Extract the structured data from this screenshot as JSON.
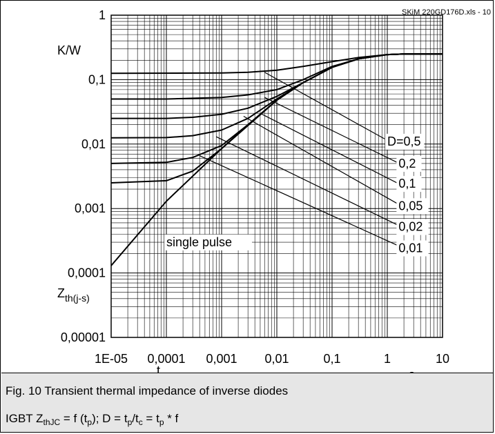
{
  "source_tag": "SKiM 220GD176D.xls - 10",
  "caption": {
    "title": "Fig. 10 Transient thermal impedance of inverse diodes",
    "formula_prefix": "IGBT Z",
    "formula_sub1": "thJC",
    "formula_part2": " = f (t",
    "formula_sub2": "p",
    "formula_part3": "); D = t",
    "formula_sub3": "p",
    "formula_part4": "/t",
    "formula_sub4": "c",
    "formula_part5": " = t",
    "formula_sub5": "p",
    "formula_part6": " * f"
  },
  "chart_data": {
    "type": "line",
    "xscale": "log",
    "yscale": "log",
    "xlim": [
      1e-05,
      10
    ],
    "ylim": [
      1e-05,
      1
    ],
    "grid": true,
    "x_tick_labels": [
      "1E-05",
      "0,0001",
      "0,001",
      "0,01",
      "0,1",
      "1",
      "10"
    ],
    "y_tick_labels": [
      "1",
      "0,1",
      "0,01",
      "0,001",
      "0,0001",
      "0,00001"
    ],
    "y_unit": "K/W",
    "ylabel_main": "Z",
    "ylabel_sub": "th(j-s)",
    "xlabel_main": "t",
    "xlabel_sub": "p",
    "x_unit": "s",
    "series": [
      {
        "name": "single pulse",
        "x": [
          1e-05,
          0.0001,
          0.001,
          0.01,
          0.03,
          0.1,
          0.3,
          1,
          2,
          10
        ],
        "y": [
          0.00013,
          0.0013,
          0.0085,
          0.048,
          0.09,
          0.155,
          0.21,
          0.245,
          0.25,
          0.25
        ]
      },
      {
        "name": "D=0,5",
        "x": [
          1e-05,
          0.001,
          0.003,
          0.01,
          0.03,
          0.1,
          0.3,
          1,
          2,
          10
        ],
        "y": [
          0.125,
          0.127,
          0.13,
          0.14,
          0.16,
          0.19,
          0.22,
          0.245,
          0.25,
          0.25
        ]
      },
      {
        "name": "0,2",
        "x": [
          1e-05,
          0.0001,
          0.001,
          0.003,
          0.01,
          0.03,
          0.1,
          0.3,
          1,
          2,
          10
        ],
        "y": [
          0.05,
          0.05,
          0.053,
          0.058,
          0.07,
          0.1,
          0.16,
          0.21,
          0.245,
          0.25,
          0.25
        ]
      },
      {
        "name": "0,1",
        "x": [
          1e-05,
          0.0001,
          0.0003,
          0.001,
          0.003,
          0.01,
          0.03,
          0.1,
          0.3,
          1,
          2,
          10
        ],
        "y": [
          0.025,
          0.025,
          0.026,
          0.029,
          0.036,
          0.055,
          0.09,
          0.155,
          0.21,
          0.245,
          0.25,
          0.25
        ]
      },
      {
        "name": "0,05",
        "x": [
          1e-05,
          0.0001,
          0.0003,
          0.001,
          0.003,
          0.01,
          0.03,
          0.1,
          0.3,
          1,
          2,
          10
        ],
        "y": [
          0.0125,
          0.0126,
          0.0135,
          0.0165,
          0.025,
          0.05,
          0.09,
          0.155,
          0.21,
          0.245,
          0.25,
          0.25
        ]
      },
      {
        "name": "0,02",
        "x": [
          1e-05,
          0.0001,
          0.0003,
          0.001,
          0.003,
          0.01,
          0.03,
          0.1,
          0.3,
          1,
          2,
          10
        ],
        "y": [
          0.005,
          0.0052,
          0.0062,
          0.0095,
          0.02,
          0.048,
          0.09,
          0.155,
          0.21,
          0.245,
          0.25,
          0.25
        ]
      },
      {
        "name": "0,01",
        "x": [
          1e-05,
          0.0001,
          0.0003,
          0.001,
          0.003,
          0.01,
          0.03,
          0.1,
          0.3,
          1,
          2,
          10
        ],
        "y": [
          0.0025,
          0.0027,
          0.0038,
          0.0085,
          0.02,
          0.048,
          0.09,
          0.155,
          0.21,
          0.245,
          0.25,
          0.25
        ]
      }
    ],
    "annotations": [
      {
        "text": "single pulse",
        "x": 0.0001,
        "y": 0.00026
      },
      {
        "text": "D=0,5",
        "x": 1,
        "y": 0.0095
      },
      {
        "text": "0,2",
        "x": 1.6,
        "y": 0.0043
      },
      {
        "text": "0,1",
        "x": 1.6,
        "y": 0.0021
      },
      {
        "text": "0,05",
        "x": 1.6,
        "y": 0.00095
      },
      {
        "text": "0,02",
        "x": 1.6,
        "y": 0.00045
      },
      {
        "text": "0,01",
        "x": 1.6,
        "y": 0.00021
      }
    ],
    "leader_lines": [
      {
        "from": [
          0.006,
          0.13
        ],
        "to": [
          0.9,
          0.012
        ]
      },
      {
        "from": [
          0.006,
          0.053
        ],
        "to": [
          1.5,
          0.0052
        ]
      },
      {
        "from": [
          0.005,
          0.03
        ],
        "to": [
          1.5,
          0.0025
        ]
      },
      {
        "from": [
          0.0025,
          0.027
        ],
        "to": [
          1.5,
          0.0012
        ]
      },
      {
        "from": [
          0.0008,
          0.013
        ],
        "to": [
          1.5,
          0.00056
        ]
      },
      {
        "from": [
          0.0004,
          0.0066
        ],
        "to": [
          1.5,
          0.00027
        ]
      }
    ]
  }
}
